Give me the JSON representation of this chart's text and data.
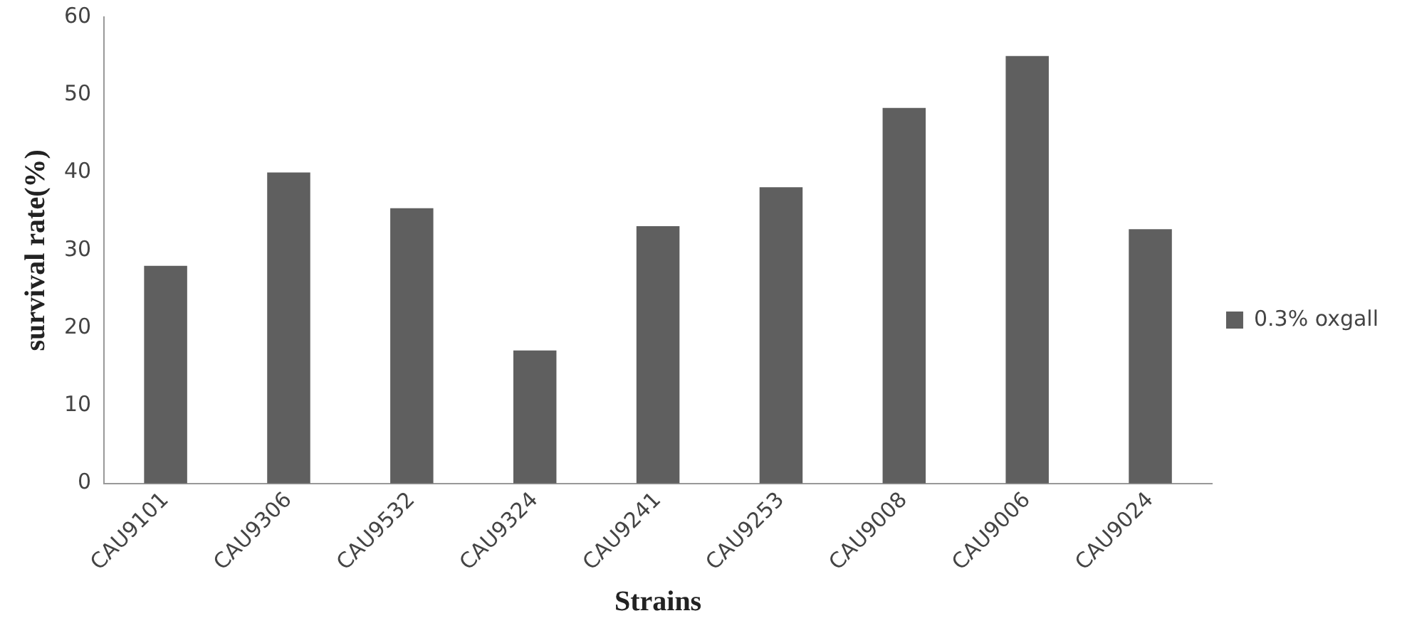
{
  "chart_data": {
    "type": "bar",
    "xlabel": "Strains",
    "ylabel": "survival rate(%)",
    "categories": [
      "CAU9101",
      "CAU9306",
      "CAU9532",
      "CAU9324",
      "CAU9241",
      "CAU9253",
      "CAU9008",
      "CAU9006",
      "CAU9024"
    ],
    "series": [
      {
        "name": "0.3% oxgall",
        "color": "#5f5f5f",
        "values": [
          28,
          40,
          35.4,
          17.1,
          33.1,
          38.1,
          48.3,
          55,
          32.7
        ]
      }
    ],
    "ylim": [
      0,
      60
    ],
    "yticks": [
      0,
      10,
      20,
      30,
      40,
      50,
      60
    ],
    "grid": false,
    "legend": "right"
  }
}
